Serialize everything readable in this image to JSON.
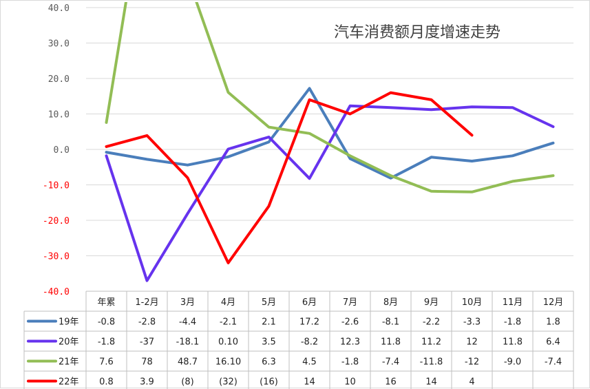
{
  "chart_data": {
    "type": "line",
    "title": "汽车消费额月度增速走势",
    "ylim": [
      -40,
      40
    ],
    "y_ticks": [
      {
        "label": "40.0",
        "value": 40,
        "color": "#595959"
      },
      {
        "label": "30.0",
        "value": 30,
        "color": "#595959"
      },
      {
        "label": "20.0",
        "value": 20,
        "color": "#595959"
      },
      {
        "label": "10.0",
        "value": 10,
        "color": "#595959"
      },
      {
        "label": "0.0",
        "value": 0,
        "color": "#595959"
      },
      {
        "label": "-10.0",
        "value": -10,
        "color": "#ff0000"
      },
      {
        "label": "-20.0",
        "value": -20,
        "color": "#ff0000"
      },
      {
        "label": "-30.0",
        "value": -30,
        "color": "#ff0000"
      },
      {
        "label": "-40.0",
        "value": -40,
        "color": "#ff0000"
      }
    ],
    "categories": [
      "年累",
      "1-2月",
      "3月",
      "4月",
      "5月",
      "6月",
      "7月",
      "8月",
      "9月",
      "10月",
      "11月",
      "12月"
    ],
    "series": [
      {
        "name": "19年",
        "color": "#4a7ebb",
        "values": [
          -0.8,
          -2.8,
          -4.4,
          -2.1,
          2.1,
          17.2,
          -2.6,
          -8.1,
          -2.2,
          -3.3,
          -1.8,
          1.8
        ],
        "table": [
          "-0.8",
          "-2.8",
          "-4.4",
          "-2.1",
          "2.1",
          "17.2",
          "-2.6",
          "-8.1",
          "-2.2",
          "-3.3",
          "-1.8",
          "1.8"
        ]
      },
      {
        "name": "20年",
        "color": "#6633ee",
        "values": [
          -1.8,
          -37,
          -18.1,
          0.1,
          3.5,
          -8.2,
          12.3,
          11.8,
          11.2,
          12,
          11.8,
          6.4
        ],
        "table": [
          "-1.8",
          "-37",
          "-18.1",
          "0.10",
          "3.5",
          "-8.2",
          "12.3",
          "11.8",
          "11.2",
          "12",
          "11.8",
          "6.4"
        ]
      },
      {
        "name": "21年",
        "color": "#92bd55",
        "values": [
          7.6,
          78,
          48.7,
          16.1,
          6.3,
          4.5,
          -1.8,
          -7.4,
          -11.8,
          -12,
          -9.0,
          -7.4
        ],
        "table": [
          "7.6",
          "78",
          "48.7",
          "16.10",
          "6.3",
          "4.5",
          "-1.8",
          "-7.4",
          "-11.8",
          "-12",
          "-9.0",
          "-7.4"
        ]
      },
      {
        "name": "22年",
        "color": "#ff0000",
        "values": [
          0.8,
          3.9,
          -8,
          -32,
          -16,
          14,
          10,
          16,
          14,
          4,
          null,
          null
        ],
        "table": [
          "0.8",
          "3.9",
          "(8)",
          "(32)",
          "(16)",
          "14",
          "10",
          "16",
          "14",
          "4",
          "",
          ""
        ]
      }
    ],
    "grid": true,
    "legend": "table-left"
  }
}
